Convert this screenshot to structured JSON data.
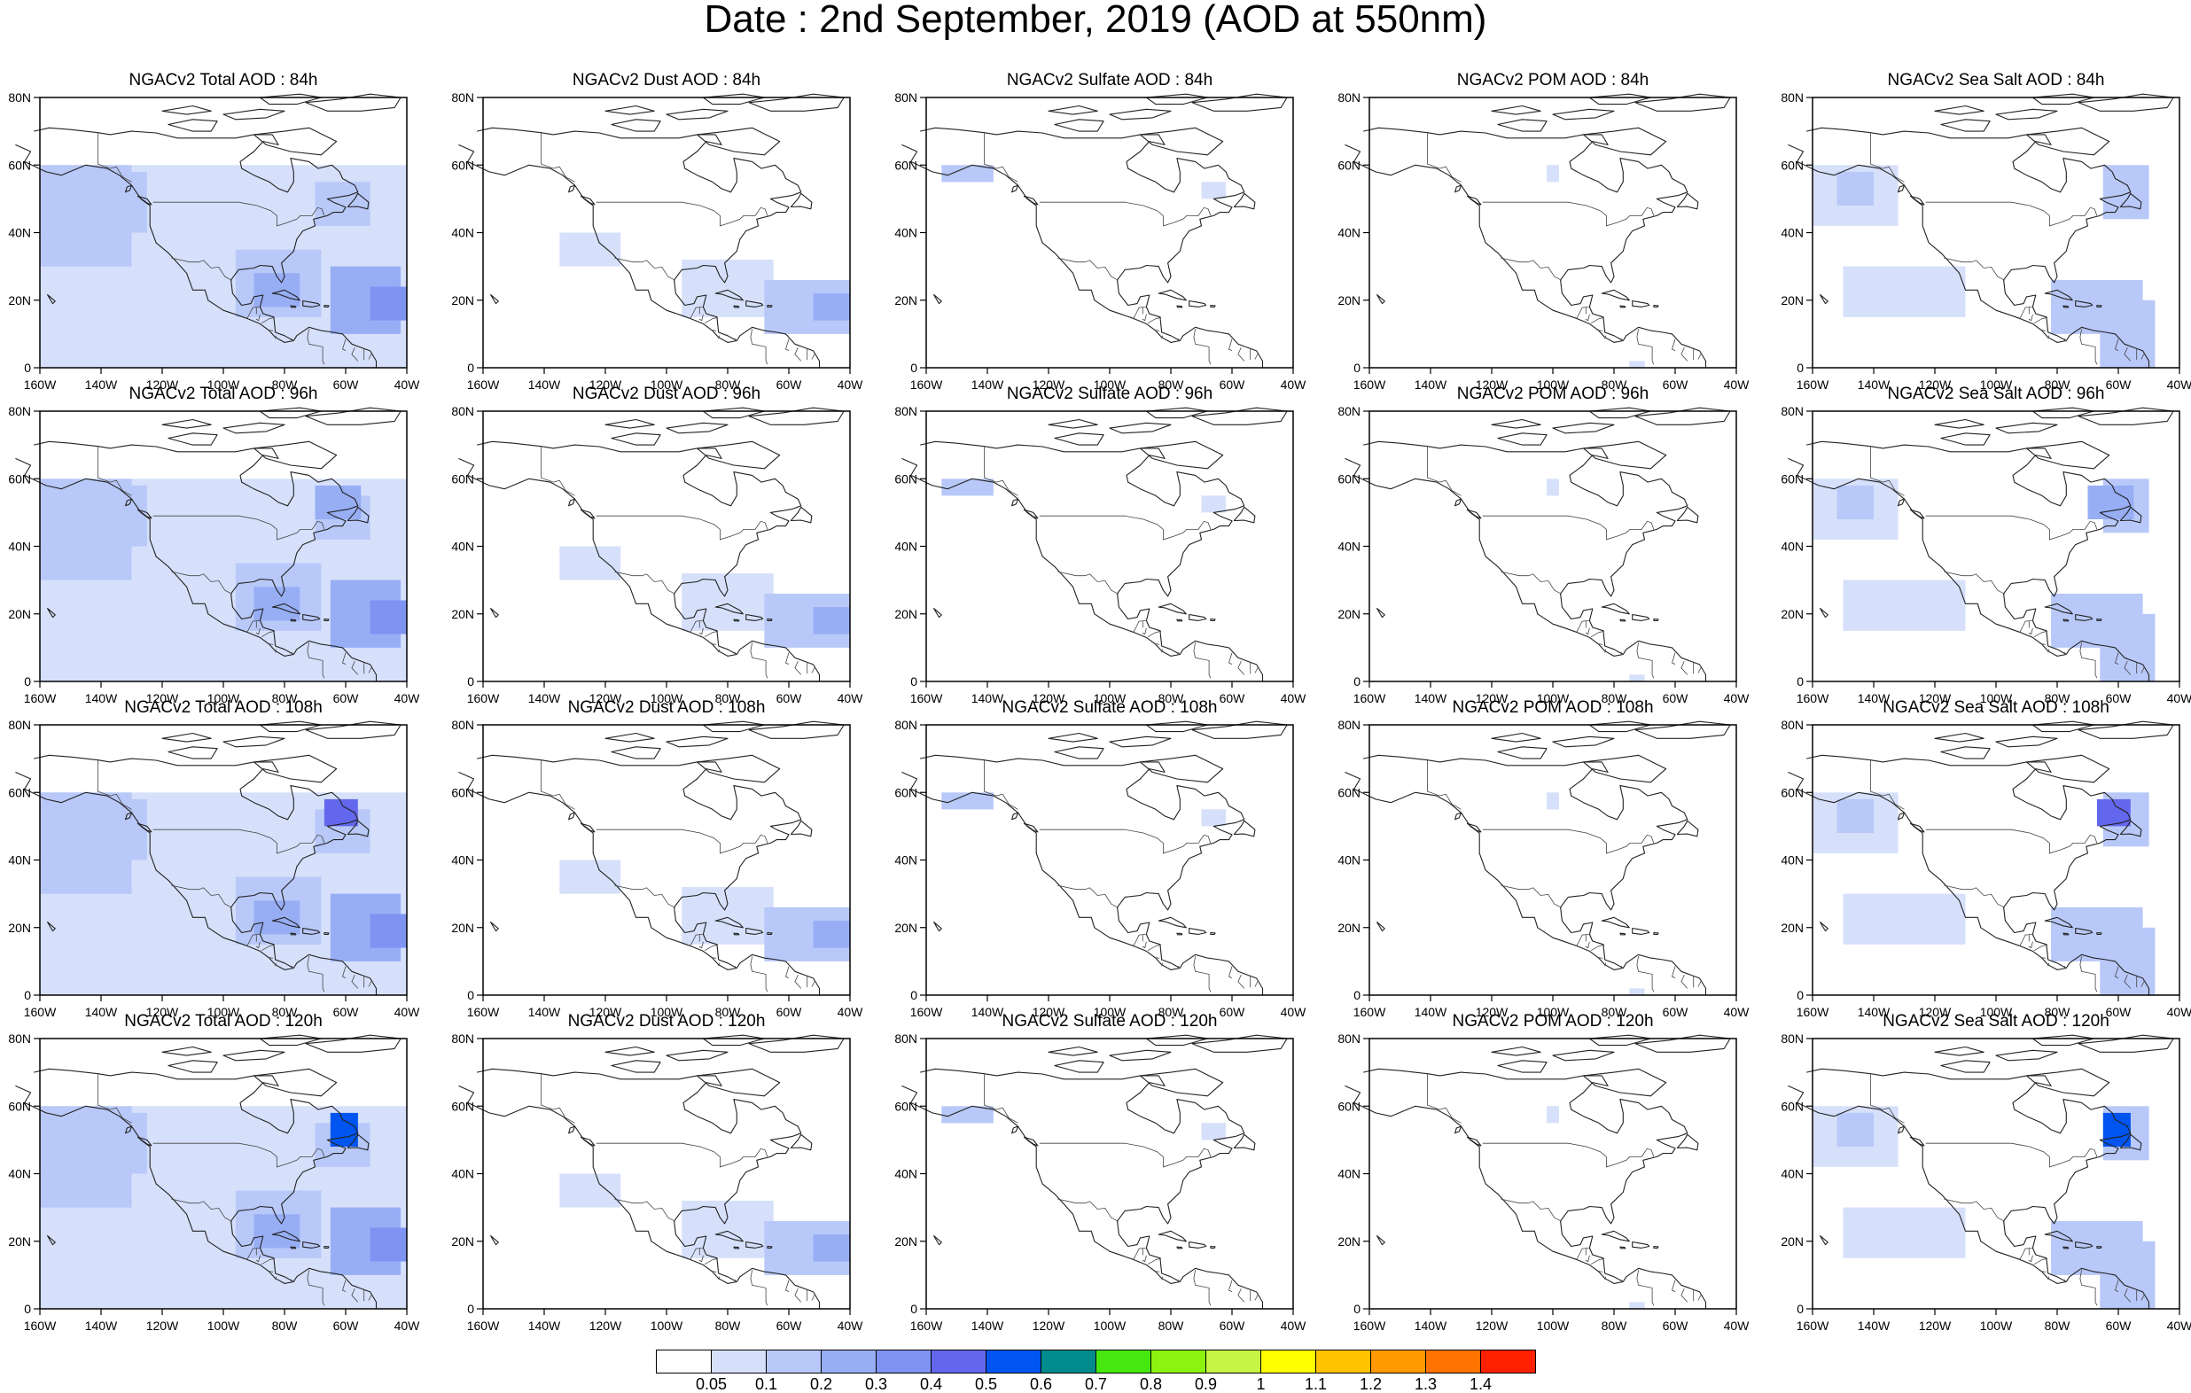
{
  "figure": {
    "title": "Date : 2nd September, 2019 (AOD at 550nm)"
  },
  "axes": {
    "x_ticks": [
      "160W",
      "140W",
      "120W",
      "100W",
      "80W",
      "60W",
      "40W"
    ],
    "x_values": [
      -160,
      -140,
      -120,
      -100,
      -80,
      -60,
      -40
    ],
    "y_ticks": [
      "0",
      "20N",
      "40N",
      "60N",
      "80N"
    ],
    "y_values": [
      0,
      20,
      40,
      60,
      80
    ],
    "lon_range": [
      -160,
      -40
    ],
    "lat_range": [
      0,
      80
    ]
  },
  "panels": [
    {
      "title": "NGACv2 Total AOD : 84h",
      "species": "total",
      "lead": 84
    },
    {
      "title": "NGACv2 Dust AOD : 84h",
      "species": "dust",
      "lead": 84
    },
    {
      "title": "NGACv2 Sulfate AOD : 84h",
      "species": "sulfate",
      "lead": 84
    },
    {
      "title": "NGACv2 POM AOD : 84h",
      "species": "pom",
      "lead": 84
    },
    {
      "title": "NGACv2 Sea Salt AOD : 84h",
      "species": "seasalt",
      "lead": 84
    },
    {
      "title": "NGACv2 Total AOD : 96h",
      "species": "total",
      "lead": 96
    },
    {
      "title": "NGACv2 Dust AOD : 96h",
      "species": "dust",
      "lead": 96
    },
    {
      "title": "NGACv2 Sulfate AOD : 96h",
      "species": "sulfate",
      "lead": 96
    },
    {
      "title": "NGACv2 POM AOD : 96h",
      "species": "pom",
      "lead": 96
    },
    {
      "title": "NGACv2 Sea Salt AOD : 96h",
      "species": "seasalt",
      "lead": 96
    },
    {
      "title": "NGACv2 Total AOD : 108h",
      "species": "total",
      "lead": 108
    },
    {
      "title": "NGACv2 Dust AOD : 108h",
      "species": "dust",
      "lead": 108
    },
    {
      "title": "NGACv2 Sulfate AOD : 108h",
      "species": "sulfate",
      "lead": 108
    },
    {
      "title": "NGACv2 POM AOD : 108h",
      "species": "pom",
      "lead": 108
    },
    {
      "title": "NGACv2 Sea Salt AOD : 108h",
      "species": "seasalt",
      "lead": 108
    },
    {
      "title": "NGACv2 Total AOD : 120h",
      "species": "total",
      "lead": 120
    },
    {
      "title": "NGACv2 Dust AOD : 120h",
      "species": "dust",
      "lead": 120
    },
    {
      "title": "NGACv2 Sulfate AOD : 120h",
      "species": "sulfate",
      "lead": 120
    },
    {
      "title": "NGACv2 POM AOD : 120h",
      "species": "pom",
      "lead": 120
    },
    {
      "title": "NGACv2 Sea Salt  AOD : 120h",
      "species": "seasalt",
      "lead": 120
    }
  ],
  "colorbar": {
    "labels": [
      "0.05",
      "0.1",
      "0.2",
      "0.3",
      "0.4",
      "0.5",
      "0.6",
      "0.7",
      "0.8",
      "0.9",
      "1",
      "1.1",
      "1.2",
      "1.3",
      "1.4"
    ],
    "colors": [
      "#ffffff",
      "#d6e0fb",
      "#b8c8f8",
      "#97aef5",
      "#7f93f2",
      "#6367ee",
      "#0055f0",
      "#008c8c",
      "#47e80f",
      "#8cf20f",
      "#c6f545",
      "#ffff00",
      "#ffc300",
      "#ff9a00",
      "#ff7300",
      "#ff2000"
    ]
  }
}
